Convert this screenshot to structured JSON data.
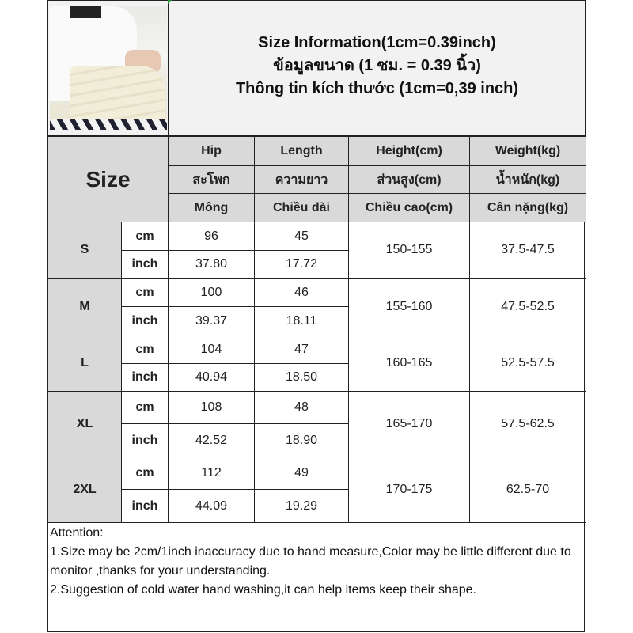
{
  "header": {
    "title_en": "Size Information(1cm=0.39inch)",
    "title_th": "ข้อมูลขนาด (1 ซม. = 0.39 นิ้ว)",
    "title_vi": "Thông tin kích thước (1cm=0,39 inch)"
  },
  "table": {
    "size_label": "Size",
    "columns": [
      {
        "en": "Hip",
        "th": "สะโพก",
        "vi": "Mông"
      },
      {
        "en": "Length",
        "th": "ความยาว",
        "vi": "Chiều dài"
      },
      {
        "en": "Height(cm)",
        "th": "ส่วนสูง(cm)",
        "vi": "Chiều cao(cm)"
      },
      {
        "en": "Weight(kg)",
        "th": "น้ำหนัก(kg)",
        "vi": "Cân nặng(kg)"
      }
    ],
    "rows": [
      {
        "size": "S",
        "cm_label": "cm",
        "inch_label": "inch",
        "hip_cm": "96",
        "length_cm": "45",
        "hip_inch": "37.80",
        "length_inch": "17.72",
        "height": "150-155",
        "weight": "37.5-47.5"
      },
      {
        "size": "M",
        "cm_label": "cm",
        "inch_label": "inch",
        "hip_cm": "100",
        "length_cm": "46",
        "hip_inch": "39.37",
        "length_inch": "18.11",
        "height": "155-160",
        "weight": "47.5-52.5"
      },
      {
        "size": "L",
        "cm_label": "cm",
        "inch_label": "inch",
        "hip_cm": "104",
        "length_cm": "47",
        "hip_inch": "40.94",
        "length_inch": "18.50",
        "height": "160-165",
        "weight": "52.5-57.5"
      },
      {
        "size": "XL",
        "cm_label": "cm",
        "inch_label": "inch",
        "hip_cm": "108",
        "length_cm": "48",
        "hip_inch": "42.52",
        "length_inch": "18.90",
        "height": "165-170",
        "weight": "57.5-62.5"
      },
      {
        "size": "2XL",
        "cm_label": "cm",
        "inch_label": "inch",
        "hip_cm": "112",
        "length_cm": "49",
        "hip_inch": "44.09",
        "length_inch": "19.29",
        "height": "170-175",
        "weight": "62.5-70"
      }
    ]
  },
  "notes": {
    "heading": "Attention:",
    "line1": "1.Size may be 2cm/1inch inaccuracy due to hand measure,Color may be little different due to monitor ,thanks for your understanding.",
    "line2": "2.Suggestion of cold water hand washing,it can help items keep their shape."
  },
  "colors": {
    "header_bg": "#f2f2f2",
    "gray_cell": "#d9d9d9",
    "border": "#222222"
  }
}
